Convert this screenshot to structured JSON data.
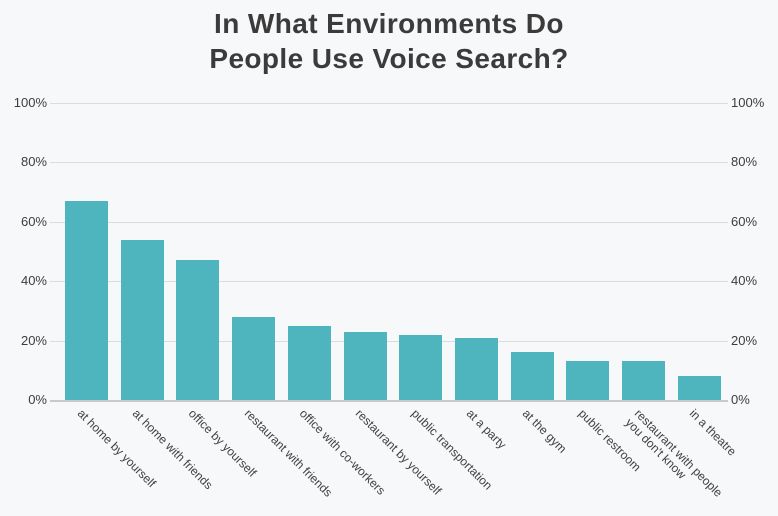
{
  "title": {
    "line1": "In What Environments Do",
    "line2": "People Use Voice Search?"
  },
  "colors": {
    "background": "#f7f8f9",
    "bar": "#4eb5bf",
    "gridline": "#dcdcdc",
    "axis_line": "#c9c9c9",
    "title_text": "#3b3b3b",
    "label_text": "#3f3f3f"
  },
  "chart_data": {
    "type": "bar",
    "title": "In What Environments Do People Use Voice Search?",
    "xlabel": "",
    "ylabel": "",
    "ylim": [
      0,
      100
    ],
    "grid": true,
    "y_axis_sides": [
      "left",
      "right"
    ],
    "y_ticks": [
      {
        "value": 0,
        "label": "0%"
      },
      {
        "value": 20,
        "label": "20%"
      },
      {
        "value": 40,
        "label": "40%"
      },
      {
        "value": 60,
        "label": "60%"
      },
      {
        "value": 80,
        "label": "80%"
      },
      {
        "value": 100,
        "label": "100%"
      }
    ],
    "categories": [
      "at home by yourself",
      "at home with friends",
      "office by yourself",
      "restaurant with friends",
      "office with co-workers",
      "restaurant by yourself",
      "public transportation",
      "at a party",
      "at the gym",
      "public restroom",
      "restaurant with people\nyou don't know",
      "in a theatre"
    ],
    "values": [
      67,
      54,
      47,
      28,
      25,
      23,
      22,
      21,
      16,
      13,
      13,
      8
    ]
  }
}
